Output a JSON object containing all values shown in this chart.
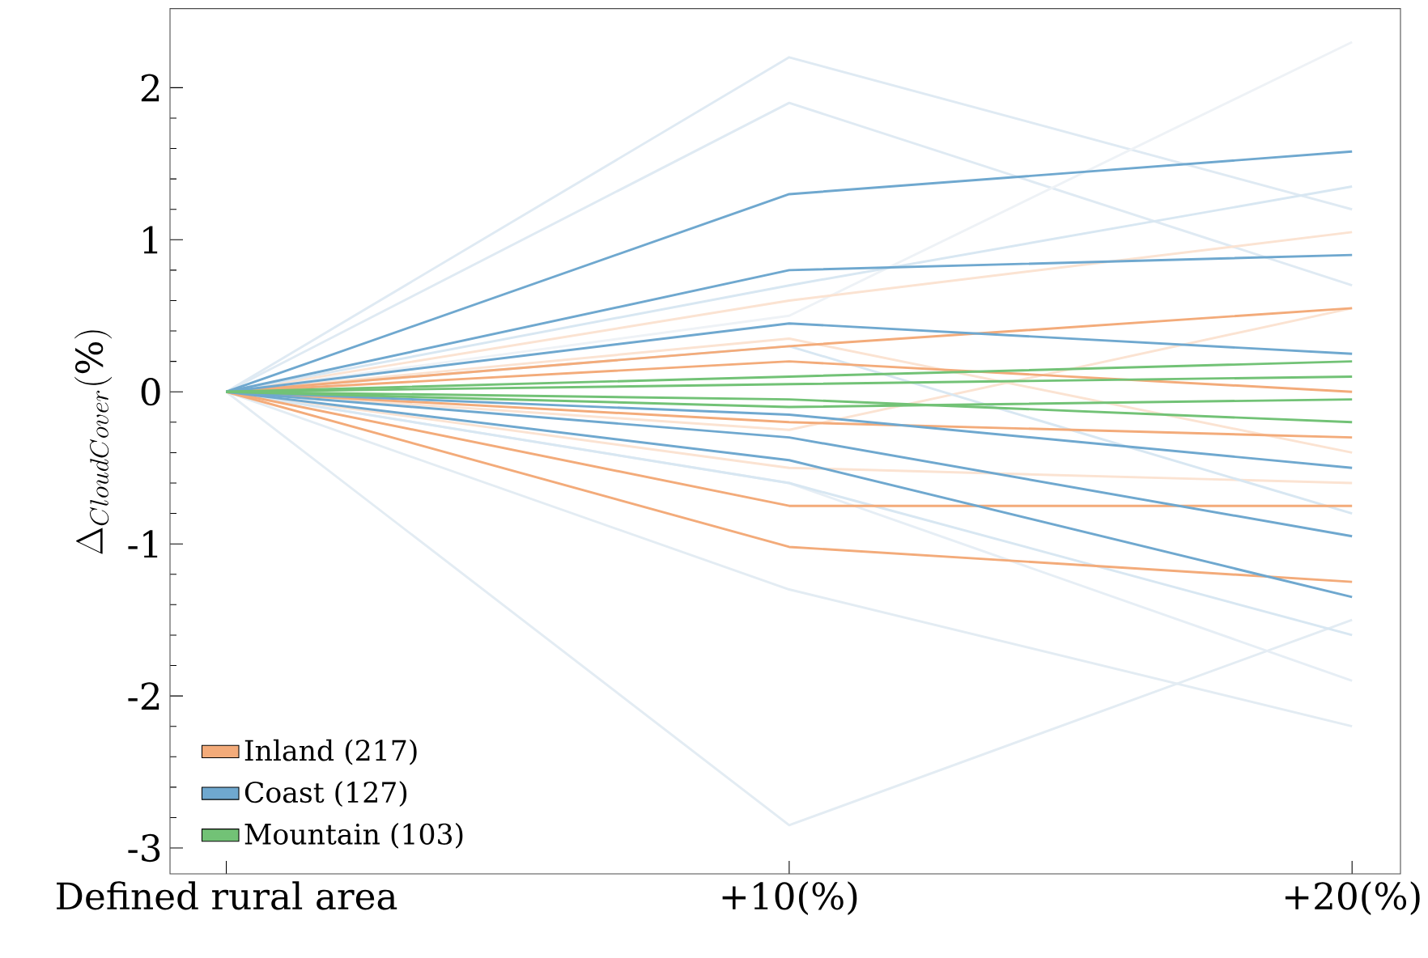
{
  "chart_data": {
    "type": "line",
    "ylabel": "\\Delta_{CloudCover}(\\%)",
    "categories": [
      "Defined rural area",
      "+10(%)",
      "+20(%)"
    ],
    "ylim": [
      -3.17,
      2.52
    ],
    "yticks": [
      -3,
      -2,
      -1,
      0,
      1,
      2
    ],
    "grid": false,
    "legend": "bottom left",
    "marker": "none",
    "line_style": "solid",
    "series": [
      {
        "color": "#dfeaf3",
        "values": [
          0,
          2.2,
          1.2
        ]
      },
      {
        "color": "#dfeaf3",
        "values": [
          0,
          1.9,
          0.7
        ]
      },
      {
        "color": "#e3ecf3",
        "values": [
          0,
          -2.85,
          -1.5
        ]
      },
      {
        "color": "#e3ecf3",
        "values": [
          0,
          -1.3,
          -2.2
        ]
      },
      {
        "color": "#eef2f6",
        "values": [
          0,
          0.5,
          2.3
        ]
      },
      {
        "color": "#e6eef5",
        "values": [
          0,
          -0.6,
          -1.9
        ]
      },
      {
        "color": "#fbe3d2",
        "values": [
          0,
          0.6,
          1.05
        ]
      },
      {
        "color": "#fbe3d2",
        "values": [
          0,
          -0.5,
          -0.6
        ]
      },
      {
        "color": "#fbe3d2",
        "values": [
          0,
          0.35,
          -0.4
        ]
      },
      {
        "color": "#fbe3d2",
        "values": [
          0,
          -0.25,
          0.55
        ]
      },
      {
        "color": "#d8e7f2",
        "values": [
          0,
          0.7,
          1.35
        ]
      },
      {
        "color": "#d8e7f2",
        "values": [
          0,
          -0.6,
          -1.6
        ]
      },
      {
        "color": "#d8e7f2",
        "values": [
          0,
          0.3,
          -0.8
        ]
      },
      {
        "color": "#f3ab7a",
        "values": [
          0,
          -1.02,
          -1.25
        ]
      },
      {
        "color": "#f3ab7a",
        "values": [
          0,
          -0.75,
          -0.75
        ]
      },
      {
        "color": "#f3ab7a",
        "values": [
          0,
          0.3,
          0.55
        ]
      },
      {
        "color": "#f3ab7a",
        "values": [
          0,
          -0.2,
          -0.3
        ]
      },
      {
        "name": "Inland (217)",
        "color": "#f3ab7a",
        "values": [
          0,
          0.2,
          0.0
        ]
      },
      {
        "color": "#6fa8cf",
        "values": [
          0,
          0.8,
          0.9
        ]
      },
      {
        "color": "#6fa8cf",
        "values": [
          0,
          0.45,
          0.25
        ]
      },
      {
        "color": "#6fa8cf",
        "values": [
          0,
          -0.45,
          -1.35
        ]
      },
      {
        "color": "#6fa8cf",
        "values": [
          0,
          -0.3,
          -0.95
        ]
      },
      {
        "color": "#6fa8cf",
        "values": [
          0,
          -0.15,
          -0.5
        ]
      },
      {
        "name": "Coast (127)",
        "color": "#6fa8cf",
        "values": [
          0,
          1.3,
          1.58
        ]
      },
      {
        "color": "#72c276",
        "values": [
          0,
          0.1,
          0.2
        ]
      },
      {
        "color": "#72c276",
        "values": [
          0,
          -0.05,
          -0.2
        ]
      },
      {
        "color": "#72c276",
        "values": [
          0,
          -0.1,
          -0.05
        ]
      },
      {
        "name": "Mountain (103)",
        "color": "#72c276",
        "values": [
          0,
          0.05,
          0.1
        ]
      }
    ]
  }
}
